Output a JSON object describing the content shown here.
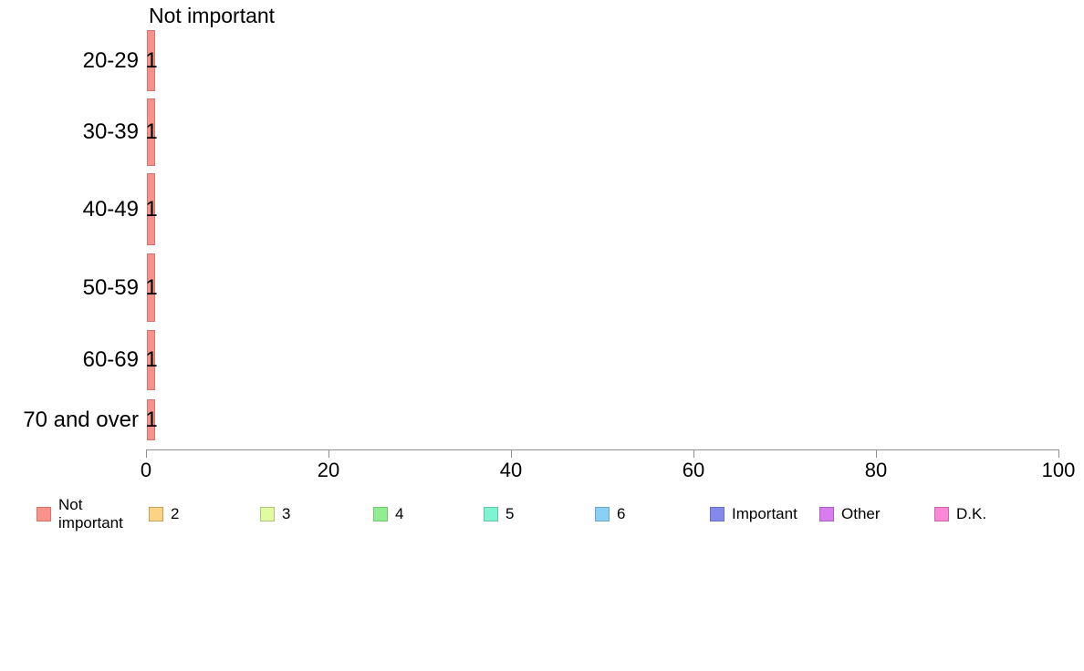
{
  "title": "Not important",
  "chart_data": {
    "type": "bar",
    "orientation": "horizontal",
    "title": "Not important",
    "categories": [
      "20-29",
      "30-39",
      "40-49",
      "50-59",
      "60-69",
      "70 and over"
    ],
    "series": [
      {
        "name": "Not important",
        "values": [
          1,
          1,
          1,
          1,
          1,
          1
        ],
        "fill": "#F9928B",
        "border": "#D3736C"
      }
    ],
    "value_labels": [
      "1",
      "1",
      "1",
      "1",
      "1",
      "1"
    ],
    "xlabel": "",
    "ylabel": "",
    "xlim": [
      0,
      100
    ],
    "x_ticks": [
      "0",
      "20",
      "40",
      "60",
      "80",
      "100"
    ],
    "grid": false,
    "legend_position": "bottom",
    "legend": [
      {
        "label": "Not important",
        "fill": "#F9928B",
        "border": "#D3736C"
      },
      {
        "label": "2",
        "fill": "#FBD382",
        "border": "#C2A45F"
      },
      {
        "label": "3",
        "fill": "#DFFC9E",
        "border": "#AFC47A"
      },
      {
        "label": "4",
        "fill": "#90EE90",
        "border": "#74C274"
      },
      {
        "label": "5",
        "fill": "#7FF4D2",
        "border": "#67C3A7"
      },
      {
        "label": "6",
        "fill": "#8AD0F5",
        "border": "#6FA6C9"
      },
      {
        "label": "Important",
        "fill": "#8589EB",
        "border": "#6A6DC1"
      },
      {
        "label": "Other",
        "fill": "#D97CEF",
        "border": "#AC61BE"
      },
      {
        "label": "D.K.",
        "fill": "#FB87D8",
        "border": "#C868AC"
      }
    ],
    "axis_color": "#919191",
    "text_color": "#000000",
    "background_color": "#FFFFFF"
  }
}
